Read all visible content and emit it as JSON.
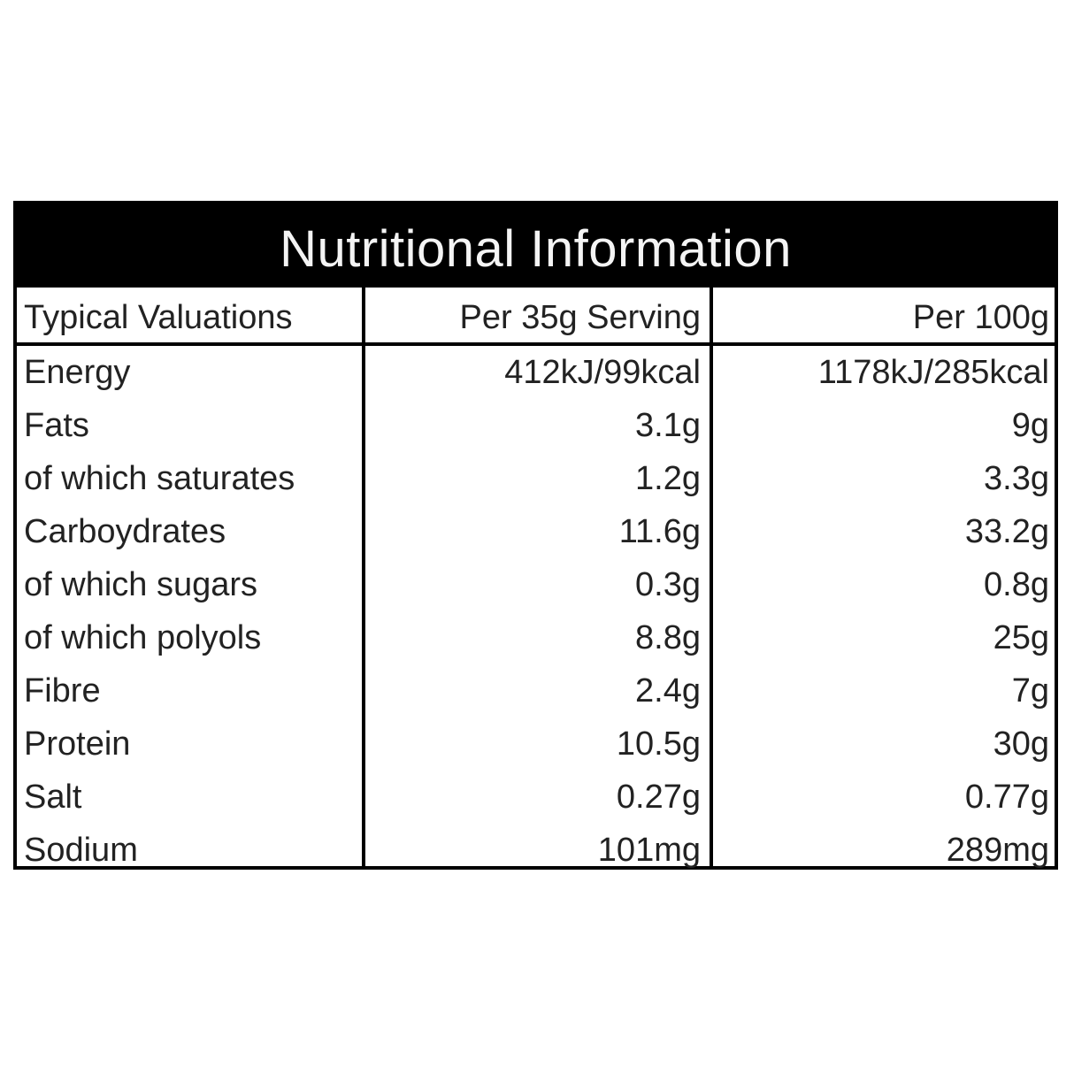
{
  "title": "Nutritional Information",
  "columns": [
    "Typical Valuations",
    "Per 35g Serving",
    "Per 100g"
  ],
  "rows": [
    {
      "label": "Energy",
      "per_serving": "412kJ/99kcal",
      "per_100g": "1178kJ/285kcal"
    },
    {
      "label": "Fats",
      "per_serving": "3.1g",
      "per_100g": "9g"
    },
    {
      "label": "of which saturates",
      "per_serving": "1.2g",
      "per_100g": "3.3g"
    },
    {
      "label": "Carboydrates",
      "per_serving": "11.6g",
      "per_100g": "33.2g"
    },
    {
      "label": "of which sugars",
      "per_serving": "0.3g",
      "per_100g": "0.8g"
    },
    {
      "label": "of which polyols",
      "per_serving": "8.8g",
      "per_100g": "25g"
    },
    {
      "label": "Fibre",
      "per_serving": "2.4g",
      "per_100g": "7g"
    },
    {
      "label": "Protein",
      "per_serving": "10.5g",
      "per_100g": "30g"
    },
    {
      "label": "Salt",
      "per_serving": "0.27g",
      "per_100g": "0.77g"
    },
    {
      "label": "Sodium",
      "per_serving": "101mg",
      "per_100g": "289mg"
    }
  ],
  "colors": {
    "title_bg": "#000000",
    "title_text": "#f4f4f4",
    "text": "#222222",
    "border": "#000000"
  }
}
